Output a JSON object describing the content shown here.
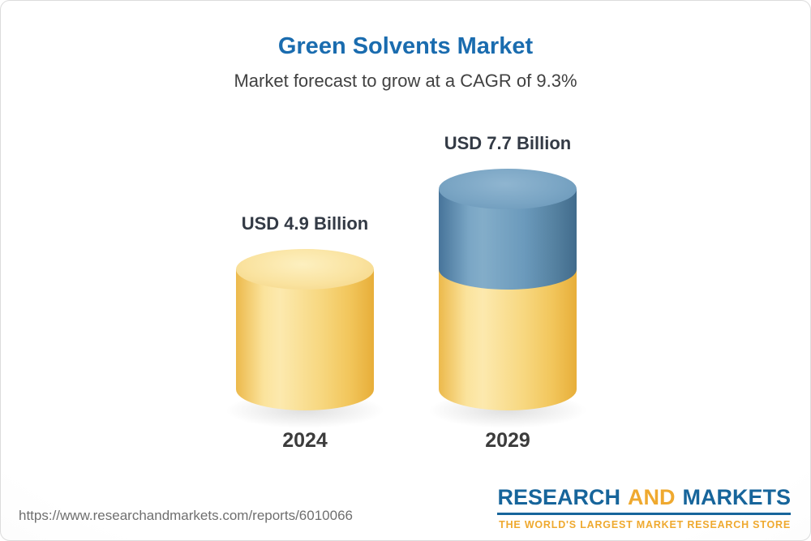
{
  "header": {
    "title": "Green Solvents Market",
    "subtitle": "Market forecast to grow at a CAGR of 9.3%"
  },
  "chart_data": {
    "type": "bar",
    "style": "3d-cylinder",
    "title": "Green Solvents Market",
    "subtitle": "Market forecast to grow at a CAGR of 9.3%",
    "unit": "USD Billion",
    "cagr_percent": 9.3,
    "categories": [
      "2024",
      "2029"
    ],
    "values": [
      4.9,
      7.7
    ],
    "value_labels": [
      "USD 4.9 Billion",
      "USD 7.7 Billion"
    ],
    "segment_note": "2029 cylinder is yellow up to the 2024 level (4.9) with a blue segment on top representing growth to 7.7",
    "legend": "none",
    "grid": false
  },
  "footer": {
    "url": "https://www.researchandmarkets.com/reports/6010066",
    "logo": {
      "part1": "RESEARCH",
      "part2": "AND",
      "part3": "MARKETS",
      "tagline": "THE WORLD'S LARGEST MARKET RESEARCH STORE"
    }
  },
  "colors": {
    "title_blue": "#1a6caf",
    "subtitle_gray": "#414141",
    "label_dark": "#333a45",
    "bar_yellow": "#f6d173",
    "bar_yellow_light": "#fce8ac",
    "bar_yellow_dark": "#e9b642",
    "bar_blue": "#6795b9",
    "bar_blue_light": "#8fb4d0",
    "bar_blue_dark": "#47749a",
    "footer_gray": "#6f6f6f",
    "logo_blue": "#17659b",
    "logo_gold": "#efa92f"
  }
}
